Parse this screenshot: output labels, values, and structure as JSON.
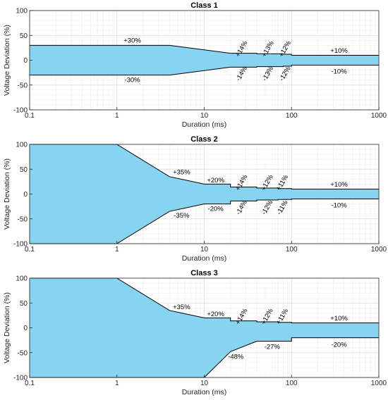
{
  "chart_data": [
    {
      "type": "area",
      "title": "Class 1",
      "xlabel": "Duration (ms)",
      "ylabel": "Voltage Deviation (%)",
      "xscale": "log",
      "xlim": [
        0.1,
        1000
      ],
      "ylim": [
        -100,
        100
      ],
      "xticks": [
        0.1,
        1,
        10,
        100,
        1000
      ],
      "xtick_labels": [
        "0.1",
        "1",
        "10",
        "100",
        "1000"
      ],
      "yticks": [
        -100,
        -50,
        0,
        50,
        100
      ],
      "ytick_labels": [
        "-100",
        "-50",
        "0",
        "50",
        "100"
      ],
      "grid": true,
      "fill_color": "#87d3f0",
      "upper": {
        "x": [
          0.1,
          4,
          20,
          20,
          40,
          40,
          80,
          80,
          100,
          100,
          1000
        ],
        "y": [
          30,
          30,
          14,
          14,
          14,
          13,
          13,
          12,
          12,
          10,
          10
        ]
      },
      "lower": {
        "x": [
          0.1,
          4,
          20,
          20,
          40,
          40,
          80,
          80,
          100,
          100,
          1000
        ],
        "y": [
          -30,
          -30,
          -14,
          -14,
          -14,
          -13,
          -13,
          -12,
          -12,
          -10,
          -10
        ]
      },
      "annotations": [
        {
          "text": "+30%",
          "x": 1.5,
          "y": 40,
          "rotate": 0
        },
        {
          "text": "-30%",
          "x": 1.5,
          "y": -40,
          "rotate": 0
        },
        {
          "text": "+14%",
          "x": 28,
          "y": 25,
          "rotate": -60
        },
        {
          "text": "-14%",
          "x": 28,
          "y": -25,
          "rotate": -60
        },
        {
          "text": "+13%",
          "x": 56,
          "y": 25,
          "rotate": -60
        },
        {
          "text": "-13%",
          "x": 56,
          "y": -25,
          "rotate": -60
        },
        {
          "text": "+12%",
          "x": 88,
          "y": 25,
          "rotate": -60
        },
        {
          "text": "-12%",
          "x": 88,
          "y": -25,
          "rotate": -60
        },
        {
          "text": "+10%",
          "x": 350,
          "y": 19,
          "rotate": 0
        },
        {
          "text": "-10%",
          "x": 350,
          "y": -23,
          "rotate": 0
        }
      ]
    },
    {
      "type": "area",
      "title": "Class 2",
      "xlabel": "Duration (ms)",
      "ylabel": "Voltage Deviation (%)",
      "xscale": "log",
      "xlim": [
        0.1,
        1000
      ],
      "ylim": [
        -100,
        100
      ],
      "xticks": [
        0.1,
        1,
        10,
        100,
        1000
      ],
      "xtick_labels": [
        "0.1",
        "1",
        "10",
        "100",
        "1000"
      ],
      "yticks": [
        -100,
        -50,
        0,
        50,
        100
      ],
      "ytick_labels": [
        "-100",
        "-50",
        "0",
        "50",
        "100"
      ],
      "grid": true,
      "fill_color": "#87d3f0",
      "upper": {
        "x": [
          0.1,
          1,
          4,
          10,
          20,
          20,
          40,
          40,
          70,
          70,
          100,
          100,
          1000
        ],
        "y": [
          100,
          100,
          35,
          20,
          20,
          14,
          14,
          12,
          12,
          11,
          11,
          10,
          10
        ]
      },
      "lower": {
        "x": [
          0.1,
          1,
          4,
          10,
          20,
          20,
          40,
          40,
          70,
          70,
          100,
          100,
          1000
        ],
        "y": [
          -100,
          -100,
          -35,
          -20,
          -20,
          -14,
          -14,
          -12,
          -12,
          -11,
          -11,
          -10,
          -10
        ]
      },
      "annotations": [
        {
          "text": "+35%",
          "x": 5.5,
          "y": 44,
          "rotate": 0
        },
        {
          "text": "-35%",
          "x": 5.5,
          "y": -43,
          "rotate": 0
        },
        {
          "text": "+20%",
          "x": 13.5,
          "y": 28,
          "rotate": 0
        },
        {
          "text": "-20%",
          "x": 13.5,
          "y": -30,
          "rotate": 0
        },
        {
          "text": "+14%",
          "x": 28,
          "y": 25,
          "rotate": -60
        },
        {
          "text": "-14%",
          "x": 28,
          "y": -25,
          "rotate": -60
        },
        {
          "text": "+12%",
          "x": 55,
          "y": 25,
          "rotate": -60
        },
        {
          "text": "-12%",
          "x": 55,
          "y": -25,
          "rotate": -60
        },
        {
          "text": "+11%",
          "x": 82,
          "y": 25,
          "rotate": -60
        },
        {
          "text": "-11%",
          "x": 82,
          "y": -25,
          "rotate": -60
        },
        {
          "text": "+10%",
          "x": 350,
          "y": 19,
          "rotate": 0
        },
        {
          "text": "-10%",
          "x": 350,
          "y": -23,
          "rotate": 0
        }
      ]
    },
    {
      "type": "area",
      "title": "Class 3",
      "xlabel": "Duration (ms)",
      "ylabel": "Voltage Deviation (%)",
      "xscale": "log",
      "xlim": [
        0.1,
        1000
      ],
      "ylim": [
        -100,
        100
      ],
      "xticks": [
        0.1,
        1,
        10,
        100,
        1000
      ],
      "xtick_labels": [
        "0.1",
        "1",
        "10",
        "100",
        "1000"
      ],
      "yticks": [
        -100,
        -50,
        0,
        50,
        100
      ],
      "ytick_labels": [
        "-100",
        "-50",
        "0",
        "50",
        "100"
      ],
      "grid": true,
      "fill_color": "#87d3f0",
      "upper": {
        "x": [
          0.1,
          1,
          4,
          10,
          20,
          20,
          40,
          40,
          70,
          70,
          100,
          100,
          1000
        ],
        "y": [
          100,
          100,
          35,
          20,
          20,
          14,
          14,
          12,
          12,
          11,
          11,
          10,
          10
        ]
      },
      "lower": {
        "x": [
          0.1,
          10,
          20,
          40,
          40,
          100,
          100,
          1000
        ],
        "y": [
          -100,
          -100,
          -48,
          -27,
          -27,
          -27,
          -20,
          -20
        ]
      },
      "annotations": [
        {
          "text": "+35%",
          "x": 5.5,
          "y": 42,
          "rotate": 0
        },
        {
          "text": "+20%",
          "x": 13.5,
          "y": 28,
          "rotate": 0
        },
        {
          "text": "+14%",
          "x": 28,
          "y": 25,
          "rotate": -60
        },
        {
          "text": "+12%",
          "x": 55,
          "y": 25,
          "rotate": -60
        },
        {
          "text": "+11%",
          "x": 82,
          "y": 25,
          "rotate": -60
        },
        {
          "text": "+10%",
          "x": 350,
          "y": 19,
          "rotate": 0
        },
        {
          "text": "-48%",
          "x": 23,
          "y": -58,
          "rotate": 0
        },
        {
          "text": "-27%",
          "x": 60,
          "y": -38,
          "rotate": 0
        },
        {
          "text": "-20%",
          "x": 350,
          "y": -34,
          "rotate": 0
        }
      ]
    }
  ]
}
